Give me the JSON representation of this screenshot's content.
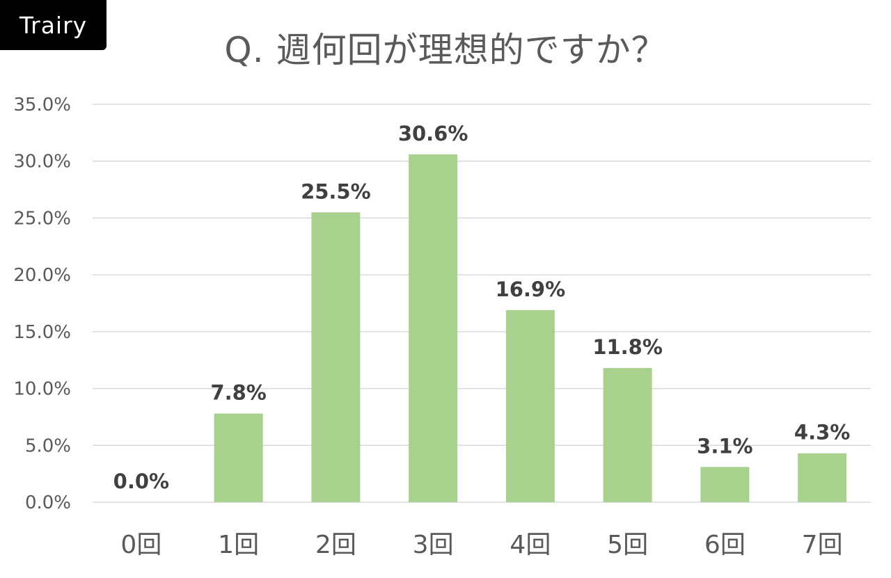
{
  "brand": {
    "logo_text": "Trairy"
  },
  "chart_data": {
    "type": "bar",
    "title": "Q. 週何回が理想的ですか？",
    "xlabel": "",
    "ylabel": "",
    "categories": [
      "0回",
      "1回",
      "2回",
      "3回",
      "4回",
      "5回",
      "6回",
      "7回"
    ],
    "values": [
      0.0,
      7.8,
      25.5,
      30.6,
      16.9,
      11.8,
      3.1,
      4.3
    ],
    "data_labels": [
      "0.0%",
      "7.8%",
      "25.5%",
      "30.6%",
      "16.9%",
      "11.8%",
      "3.1%",
      "4.3%"
    ],
    "yticks": [
      0,
      5,
      10,
      15,
      20,
      25,
      30,
      35
    ],
    "ytick_labels": [
      "0.0%",
      "5.0%",
      "10.0%",
      "15.0%",
      "20.0%",
      "25.0%",
      "30.0%",
      "35.0%"
    ],
    "ylim": [
      0,
      35
    ],
    "grid": true,
    "legend": "none",
    "colors": {
      "bar": "#a9d18e",
      "grid": "#d9d9d9"
    }
  }
}
